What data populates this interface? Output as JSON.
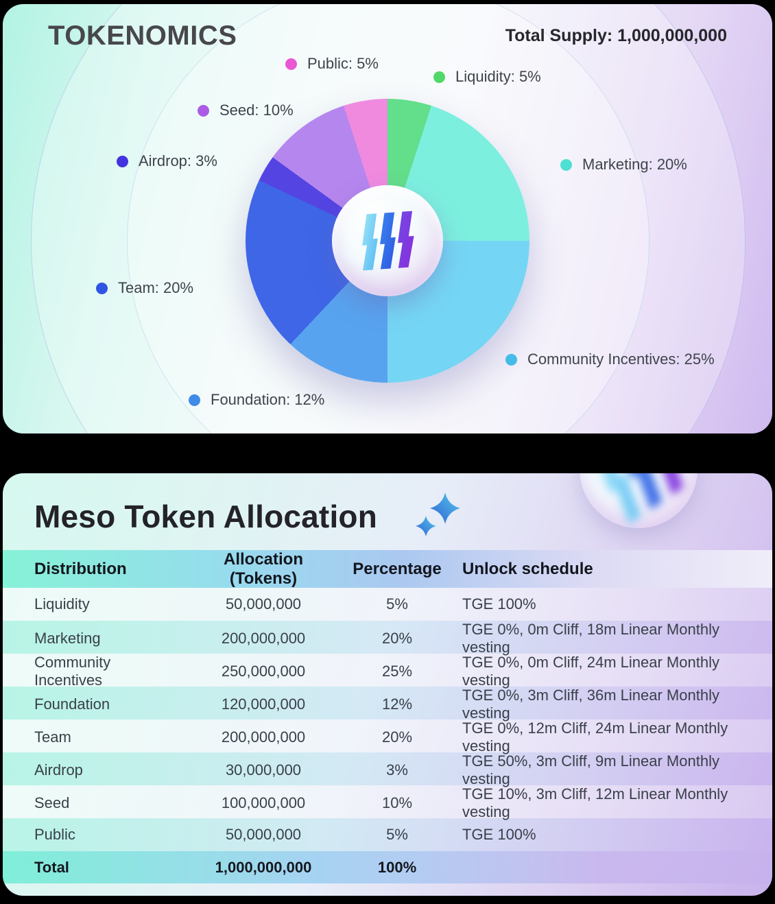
{
  "page_bg": "#000000",
  "tokenomics_card": {
    "title": "TOKENOMICS",
    "total_supply_label": "Total Supply: 1,000,000,000"
  },
  "chart_data": {
    "type": "pie",
    "title": "TOKENOMICS",
    "total_supply": "1,000,000,000",
    "start_angle_deg": 0,
    "direction": "clockwise",
    "donut": true,
    "slices": [
      {
        "id": "liquidity",
        "label": "Liquidity",
        "value": 5,
        "legend_label": "Liquidity: 5%",
        "slice_color": "#63DE8A",
        "dot_color": "#50D869"
      },
      {
        "id": "marketing",
        "label": "Marketing",
        "value": 20,
        "legend_label": "Marketing: 20%",
        "slice_color": "#7DEFDF",
        "dot_color": "#4EE0D2"
      },
      {
        "id": "community-incentives",
        "label": "Community Incentives",
        "value": 25,
        "legend_label": "Community Incentives: 25%",
        "slice_color": "#75D5F4",
        "dot_color": "#43BCE8"
      },
      {
        "id": "foundation",
        "label": "Foundation",
        "value": 12,
        "legend_label": "Foundation: 12%",
        "slice_color": "#58A3EF",
        "dot_color": "#3F8BE8"
      },
      {
        "id": "team",
        "label": "Team",
        "value": 20,
        "legend_label": "Team: 20%",
        "slice_color": "#3E66E7",
        "dot_color": "#2F55E2"
      },
      {
        "id": "airdrop",
        "label": "Airdrop",
        "value": 3,
        "legend_label": "Airdrop: 3%",
        "slice_color": "#5444E2",
        "dot_color": "#4334E0"
      },
      {
        "id": "seed",
        "label": "Seed",
        "value": 10,
        "legend_label": "Seed: 10%",
        "slice_color": "#B586EE",
        "dot_color": "#AC5CE4"
      },
      {
        "id": "public",
        "label": "Public",
        "value": 5,
        "legend_label": "Public: 5%",
        "slice_color": "#EF8ADF",
        "dot_color": "#E957D3"
      }
    ]
  },
  "allocation_card": {
    "title": "Meso Token Allocation",
    "sparkle_icon_colors": [
      "#2E5FD6",
      "#56C9EA"
    ],
    "columns": [
      "Distribution",
      "Allocation (Tokens)",
      "Percentage",
      "Unlock schedule"
    ],
    "rows": [
      {
        "distribution": "Liquidity",
        "allocation": "50,000,000",
        "percentage": "5%",
        "unlock": "TGE 100%"
      },
      {
        "distribution": "Marketing",
        "allocation": "200,000,000",
        "percentage": "20%",
        "unlock": "TGE 0%, 0m Cliff, 18m Linear Monthly vesting"
      },
      {
        "distribution": "Community Incentives",
        "allocation": "250,000,000",
        "percentage": "25%",
        "unlock": "TGE 0%, 0m Cliff, 24m Linear Monthly vesting"
      },
      {
        "distribution": "Foundation",
        "allocation": "120,000,000",
        "percentage": "12%",
        "unlock": "TGE 0%, 3m Cliff, 36m Linear Monthly vesting"
      },
      {
        "distribution": "Team",
        "allocation": "200,000,000",
        "percentage": "20%",
        "unlock": "TGE 0%, 12m Cliff, 24m Linear Monthly vesting"
      },
      {
        "distribution": "Airdrop",
        "allocation": "30,000,000",
        "percentage": "3%",
        "unlock": "TGE 50%, 3m Cliff, 9m Linear Monthly vesting"
      },
      {
        "distribution": "Seed",
        "allocation": "100,000,000",
        "percentage": "10%",
        "unlock": "TGE 10%, 3m Cliff, 12m Linear Monthly vesting"
      },
      {
        "distribution": "Public",
        "allocation": "50,000,000",
        "percentage": "5%",
        "unlock": "TGE 100%"
      }
    ],
    "total": {
      "distribution": "Total",
      "allocation": "1,000,000,000",
      "percentage": "100%",
      "unlock": ""
    }
  }
}
